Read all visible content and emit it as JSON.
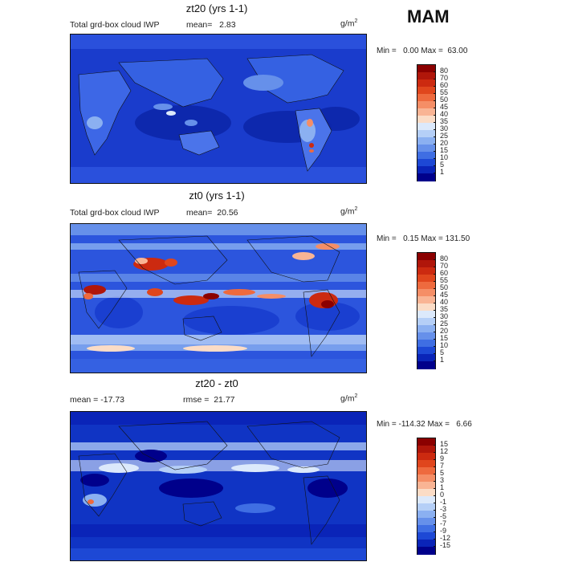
{
  "season": "MAM",
  "panels": [
    {
      "title": "zt20 (yrs 1-1)",
      "variable": "Total grd-box cloud IWP",
      "stat_text": "mean=   2.83",
      "unit": "g/m",
      "unit_sup": "2",
      "minmax": "Min =   0.00 Max =  63.00",
      "cbar_labels": [
        "80",
        "70",
        "60",
        "55",
        "50",
        "45",
        "40",
        "35",
        "30",
        "25",
        "20",
        "15",
        "10",
        "5",
        "1"
      ]
    },
    {
      "title": "zt0 (yrs 1-1)",
      "variable": "Total grd-box cloud IWP",
      "stat_text": "mean=  20.56",
      "unit": "g/m",
      "unit_sup": "2",
      "minmax": "Min =   0.15 Max = 131.50",
      "cbar_labels": [
        "80",
        "70",
        "60",
        "55",
        "50",
        "45",
        "40",
        "35",
        "30",
        "25",
        "20",
        "15",
        "10",
        "5",
        "1"
      ]
    },
    {
      "title": "zt20 - zt0",
      "variable": "",
      "stat_text": "mean = -17.73",
      "stat_text2": "rmse =  21.77",
      "unit": "g/m",
      "unit_sup": "2",
      "minmax": "Min = -114.32 Max =   6.66",
      "cbar_labels": [
        "15",
        "12",
        "9",
        "7",
        "5",
        "3",
        "1",
        "0",
        "-1",
        "-3",
        "-5",
        "-7",
        "-9",
        "-12",
        "-15"
      ]
    }
  ],
  "colors": {
    "cbar": [
      "#8b0000",
      "#b0160a",
      "#cc2a10",
      "#e0461d",
      "#ee6a3e",
      "#f58e66",
      "#f9b494",
      "#fbdcc6",
      "#dce9fb",
      "#b5cff7",
      "#8bb0f1",
      "#6690ea",
      "#3f6ee3",
      "#1d48d5",
      "#0a24b8",
      "#00008b"
    ],
    "ocean_low": "#1a3fd0",
    "ocean_dark": "#0a1fa8"
  }
}
